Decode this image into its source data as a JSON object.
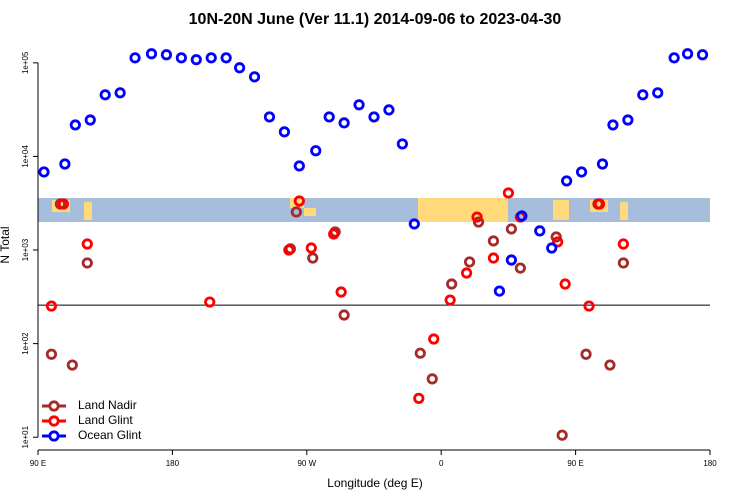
{
  "chart_data": {
    "type": "scatter",
    "title": "10N-20N June (Ver 11.1)   2014-09-06 to 2023-04-30",
    "xlabel": "Longitude (deg E)",
    "ylabel": "N Total",
    "log_y": true,
    "legend": "bottom-left",
    "xlim": [
      90,
      540
    ],
    "ylim": [
      7.3,
      155000
    ],
    "xticks": [
      {
        "value": 90,
        "label": "90 E"
      },
      180,
      {
        "value": 270,
        "label": "90 W"
      },
      {
        "value": 360,
        "label": "0"
      },
      {
        "value": 450,
        "label": "90 E"
      },
      {
        "value": 540,
        "label": "180"
      }
    ],
    "yticks": [
      {
        "value": 10,
        "label": "1e+01"
      },
      {
        "value": 100,
        "label": "1e+02"
      },
      {
        "value": 1000,
        "label": "1e+03"
      },
      {
        "value": 10000,
        "label": "1e+04"
      },
      {
        "value": 100000,
        "label": "1e+05"
      }
    ],
    "hline": 258,
    "series": [
      {
        "name": "Land Nadir",
        "color": "#a52a2a",
        "x": [
          99,
          105,
          113,
          123,
          263,
          259,
          274,
          289,
          295,
          346,
          354,
          367,
          379,
          385,
          395,
          407,
          413,
          437,
          441,
          457,
          465,
          473,
          482
        ],
        "values": [
          77,
          3100,
          59,
          727,
          2550,
          1030,
          821,
          1560,
          202,
          79,
          42,
          433,
          745,
          1990,
          1250,
          1680,
          641,
          1380,
          10.5,
          77,
          3100,
          59,
          727
        ]
      },
      {
        "name": "Land Glint",
        "color": "#ff0000",
        "x": [
          99,
          107,
          123,
          205,
          258,
          265,
          273,
          288,
          293,
          345,
          355,
          366,
          377,
          384,
          395,
          405,
          413,
          438,
          443,
          459,
          466,
          482
        ],
        "values": [
          252,
          3100,
          1160,
          278,
          1000,
          3340,
          1050,
          1480,
          356,
          26,
          112,
          292,
          568,
          2250,
          821,
          4070,
          2250,
          1220,
          433,
          252,
          3100,
          1160
        ]
      },
      {
        "name": "Ocean Glint",
        "color": "#0000ff",
        "x": [
          94,
          108,
          115,
          125,
          135,
          145,
          155,
          166,
          176,
          186,
          196,
          206,
          216,
          225,
          235,
          245,
          255,
          265,
          276,
          285,
          295,
          305,
          315,
          325,
          334,
          342,
          399,
          407,
          414,
          426,
          434,
          444,
          454,
          468,
          475,
          485,
          495,
          505,
          516,
          525,
          535
        ],
        "values": [
          6820,
          8300,
          21700,
          24500,
          45500,
          47800,
          113000,
          125000,
          122000,
          113000,
          108000,
          113000,
          113000,
          88500,
          70800,
          26400,
          18300,
          7910,
          11500,
          26400,
          22800,
          35600,
          26400,
          31400,
          13600,
          1900,
          364,
          782,
          2310,
          1600,
          1050,
          5470,
          6820,
          8300,
          21700,
          24500,
          45500,
          47800,
          113000,
          125000,
          122000
        ]
      }
    ]
  }
}
